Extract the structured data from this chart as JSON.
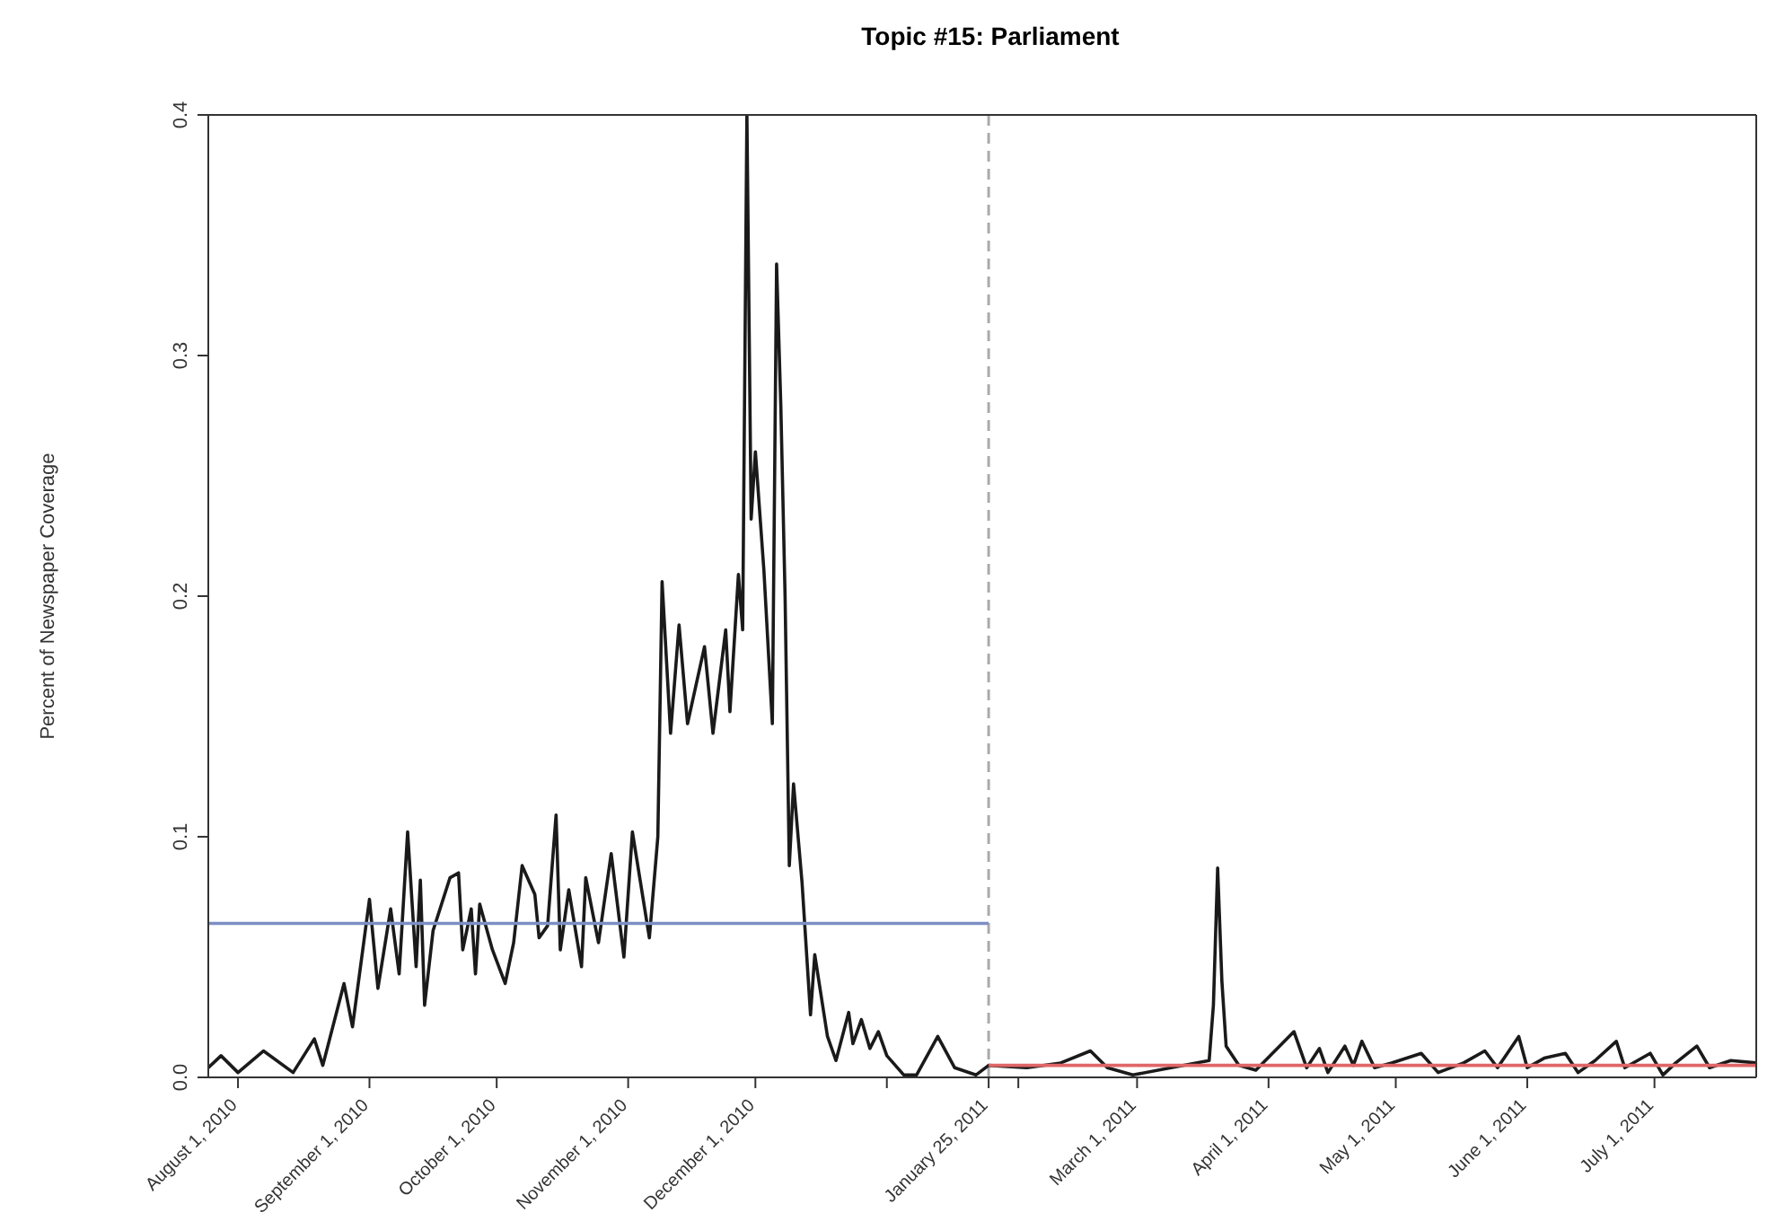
{
  "chart_data": {
    "type": "line",
    "title": "Topic #15: Parliament",
    "ylabel": "Percent of Newspaper Coverage",
    "xlim": [
      "2010-07-25",
      "2011-07-25"
    ],
    "xticks": [
      {
        "value": "2010-08-01",
        "label": "August 1, 2010"
      },
      {
        "value": "2010-09-01",
        "label": "September 1, 2010"
      },
      {
        "value": "2010-10-01",
        "label": "October 1, 2010"
      },
      {
        "value": "2010-11-01",
        "label": "November 1, 2010"
      },
      {
        "value": "2010-12-01",
        "label": "December 1, 2010"
      },
      {
        "value": "2011-01-01",
        "label": null
      },
      {
        "value": "2011-01-25",
        "label": "January 25, 2011"
      },
      {
        "value": "2011-02-01",
        "label": null
      },
      {
        "value": "2011-03-01",
        "label": "March 1, 2011"
      },
      {
        "value": "2011-04-01",
        "label": "April 1, 2011"
      },
      {
        "value": "2011-05-01",
        "label": "May 1, 2011"
      },
      {
        "value": "2011-06-01",
        "label": "June 1, 2011"
      },
      {
        "value": "2011-07-01",
        "label": "July 1, 2011"
      }
    ],
    "ylim": [
      0,
      0.4
    ],
    "yticks": [
      {
        "value": 0,
        "label": "0.0"
      },
      0.1,
      0.2,
      0.3,
      0.4
    ],
    "marker": "none",
    "line_style": "solid",
    "ref_lines": [
      {
        "axis": "x",
        "value": "2011-01-25",
        "label": null,
        "color": "#aaaaaa",
        "line_style": "dashed"
      }
    ],
    "series": [
      {
        "color": "#1a1a1a",
        "x": [
          "2010-07-25",
          "2010-07-28",
          "2010-08-01",
          "2010-08-07",
          "2010-08-14",
          "2010-08-19",
          "2010-08-21",
          "2010-08-26",
          "2010-08-28",
          "2010-09-01",
          "2010-09-03",
          "2010-09-06",
          "2010-09-08",
          "2010-09-10",
          "2010-09-12",
          "2010-09-13",
          "2010-09-14",
          "2010-09-16",
          "2010-09-20",
          "2010-09-22",
          "2010-09-23",
          "2010-09-25",
          "2010-09-26",
          "2010-09-27",
          "2010-09-30",
          "2010-10-03",
          "2010-10-05",
          "2010-10-07",
          "2010-10-10",
          "2010-10-11",
          "2010-10-13",
          "2010-10-15",
          "2010-10-16",
          "2010-10-18",
          "2010-10-21",
          "2010-10-22",
          "2010-10-25",
          "2010-10-28",
          "2010-10-31",
          "2010-11-02",
          "2010-11-06",
          "2010-11-08",
          "2010-11-09",
          "2010-11-11",
          "2010-11-13",
          "2010-11-15",
          "2010-11-17",
          "2010-11-19",
          "2010-11-21",
          "2010-11-24",
          "2010-11-25",
          "2010-11-27",
          "2010-11-28",
          "2010-11-29",
          "2010-11-30",
          "2010-12-01",
          "2010-12-03",
          "2010-12-05",
          "2010-12-06",
          "2010-12-07",
          "2010-12-08",
          "2010-12-09",
          "2010-12-10",
          "2010-12-12",
          "2010-12-14",
          "2010-12-15",
          "2010-12-18",
          "2010-12-20",
          "2010-12-23",
          "2010-12-24",
          "2010-12-26",
          "2010-12-28",
          "2010-12-30",
          "2011-01-01",
          "2011-01-05",
          "2011-01-08",
          "2011-01-13",
          "2011-01-17",
          "2011-01-22",
          "2011-01-25",
          "2011-02-03",
          "2011-02-11",
          "2011-02-18",
          "2011-02-22",
          "2011-02-28",
          "2011-03-09",
          "2011-03-18",
          "2011-03-19",
          "2011-03-20",
          "2011-03-21",
          "2011-03-22",
          "2011-03-25",
          "2011-03-29",
          "2011-04-07",
          "2011-04-10",
          "2011-04-13",
          "2011-04-15",
          "2011-04-19",
          "2011-04-21",
          "2011-04-23",
          "2011-04-26",
          "2011-04-30",
          "2011-05-07",
          "2011-05-11",
          "2011-05-17",
          "2011-05-22",
          "2011-05-25",
          "2011-05-30",
          "2011-06-01",
          "2011-06-05",
          "2011-06-10",
          "2011-06-13",
          "2011-06-17",
          "2011-06-22",
          "2011-06-24",
          "2011-06-30",
          "2011-07-03",
          "2011-07-06",
          "2011-07-11",
          "2011-07-14",
          "2011-07-19",
          "2011-07-25"
        ],
        "values": [
          0.004,
          0.009,
          0.002,
          0.011,
          0.002,
          0.016,
          0.005,
          0.039,
          0.021,
          0.074,
          0.037,
          0.07,
          0.043,
          0.102,
          0.046,
          0.082,
          0.03,
          0.061,
          0.083,
          0.085,
          0.053,
          0.07,
          0.043,
          0.072,
          0.053,
          0.039,
          0.056,
          0.088,
          0.076,
          0.058,
          0.063,
          0.109,
          0.053,
          0.078,
          0.046,
          0.083,
          0.056,
          0.093,
          0.05,
          0.102,
          0.058,
          0.1,
          0.206,
          0.143,
          0.188,
          0.147,
          0.163,
          0.179,
          0.143,
          0.186,
          0.152,
          0.209,
          0.186,
          0.4,
          0.232,
          0.26,
          0.211,
          0.147,
          0.338,
          0.279,
          0.2,
          0.088,
          0.122,
          0.081,
          0.026,
          0.051,
          0.017,
          0.007,
          0.027,
          0.014,
          0.024,
          0.012,
          0.019,
          0.009,
          0.001,
          0.001,
          0.017,
          0.004,
          0.001,
          0.005,
          0.004,
          0.006,
          0.011,
          0.004,
          0.001,
          0.004,
          0.007,
          0.03,
          0.087,
          0.04,
          0.013,
          0.005,
          0.003,
          0.019,
          0.004,
          0.012,
          0.002,
          0.013,
          0.005,
          0.015,
          0.004,
          0.006,
          0.01,
          0.002,
          0.006,
          0.011,
          0.004,
          0.017,
          0.004,
          0.008,
          0.01,
          0.002,
          0.007,
          0.015,
          0.004,
          0.01,
          0.001,
          0.006,
          0.013,
          0.004,
          0.007,
          0.006
        ]
      },
      {
        "color": "#7b8fc4",
        "x": [
          "2010-07-25",
          "2011-01-25"
        ],
        "values": [
          0.064,
          0.064
        ]
      },
      {
        "color": "#e06666",
        "x": [
          "2011-01-25",
          "2011-07-25"
        ],
        "values": [
          0.005,
          0.005
        ]
      }
    ]
  }
}
